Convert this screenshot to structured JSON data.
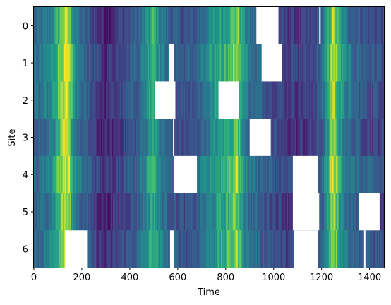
{
  "chart_data": {
    "type": "heatmap",
    "colormap": "viridis",
    "xlabel": "Time",
    "ylabel": "Site",
    "xlim": [
      0,
      1460
    ],
    "x_ticks": [
      0,
      200,
      400,
      600,
      800,
      1000,
      1200,
      1400
    ],
    "rows": [
      "0",
      "1",
      "2",
      "3",
      "4",
      "5",
      "6"
    ],
    "row_offsets": [
      0.0,
      0.05,
      0.02,
      -0.03,
      0.06,
      -0.01,
      0.03
    ],
    "intensity_profile": [
      [
        0,
        0.38
      ],
      [
        40,
        0.45
      ],
      [
        80,
        0.58
      ],
      [
        110,
        0.8
      ],
      [
        125,
        0.92
      ],
      [
        145,
        0.88
      ],
      [
        170,
        0.55
      ],
      [
        200,
        0.4
      ],
      [
        240,
        0.3
      ],
      [
        270,
        0.18
      ],
      [
        300,
        0.12
      ],
      [
        330,
        0.18
      ],
      [
        360,
        0.25
      ],
      [
        400,
        0.32
      ],
      [
        440,
        0.4
      ],
      [
        480,
        0.62
      ],
      [
        500,
        0.75
      ],
      [
        520,
        0.55
      ],
      [
        560,
        0.4
      ],
      [
        600,
        0.33
      ],
      [
        640,
        0.3
      ],
      [
        680,
        0.36
      ],
      [
        720,
        0.5
      ],
      [
        760,
        0.62
      ],
      [
        800,
        0.7
      ],
      [
        830,
        0.78
      ],
      [
        850,
        0.85
      ],
      [
        870,
        0.62
      ],
      [
        900,
        0.45
      ],
      [
        950,
        0.36
      ],
      [
        1000,
        0.3
      ],
      [
        1050,
        0.22
      ],
      [
        1100,
        0.2
      ],
      [
        1150,
        0.22
      ],
      [
        1200,
        0.35
      ],
      [
        1230,
        0.7
      ],
      [
        1245,
        0.9
      ],
      [
        1260,
        0.8
      ],
      [
        1290,
        0.55
      ],
      [
        1330,
        0.4
      ],
      [
        1380,
        0.33
      ],
      [
        1420,
        0.3
      ],
      [
        1460,
        0.28
      ]
    ],
    "missing_segments": [
      {
        "row": 0,
        "x0": 928,
        "x1": 1020
      },
      {
        "row": 1,
        "x0": 565,
        "x1": 583
      },
      {
        "row": 1,
        "x0": 950,
        "x1": 1035
      },
      {
        "row": 2,
        "x0": 505,
        "x1": 590
      },
      {
        "row": 2,
        "x0": 770,
        "x1": 855
      },
      {
        "row": 3,
        "x0": 900,
        "x1": 988
      },
      {
        "row": 4,
        "x0": 585,
        "x1": 680
      },
      {
        "row": 4,
        "x0": 1080,
        "x1": 1185
      },
      {
        "row": 5,
        "x0": 1080,
        "x1": 1190
      },
      {
        "row": 5,
        "x0": 1355,
        "x1": 1442
      },
      {
        "row": 6,
        "x0": 130,
        "x1": 222
      },
      {
        "row": 6,
        "x0": 568,
        "x1": 583
      },
      {
        "row": 6,
        "x0": 1085,
        "x1": 1185
      }
    ],
    "missing_lines": [
      {
        "row": 0,
        "x": 1193
      },
      {
        "row": 5,
        "x": 1375
      },
      {
        "row": 6,
        "x": 1380
      },
      {
        "row": 3,
        "x": 583
      }
    ]
  }
}
